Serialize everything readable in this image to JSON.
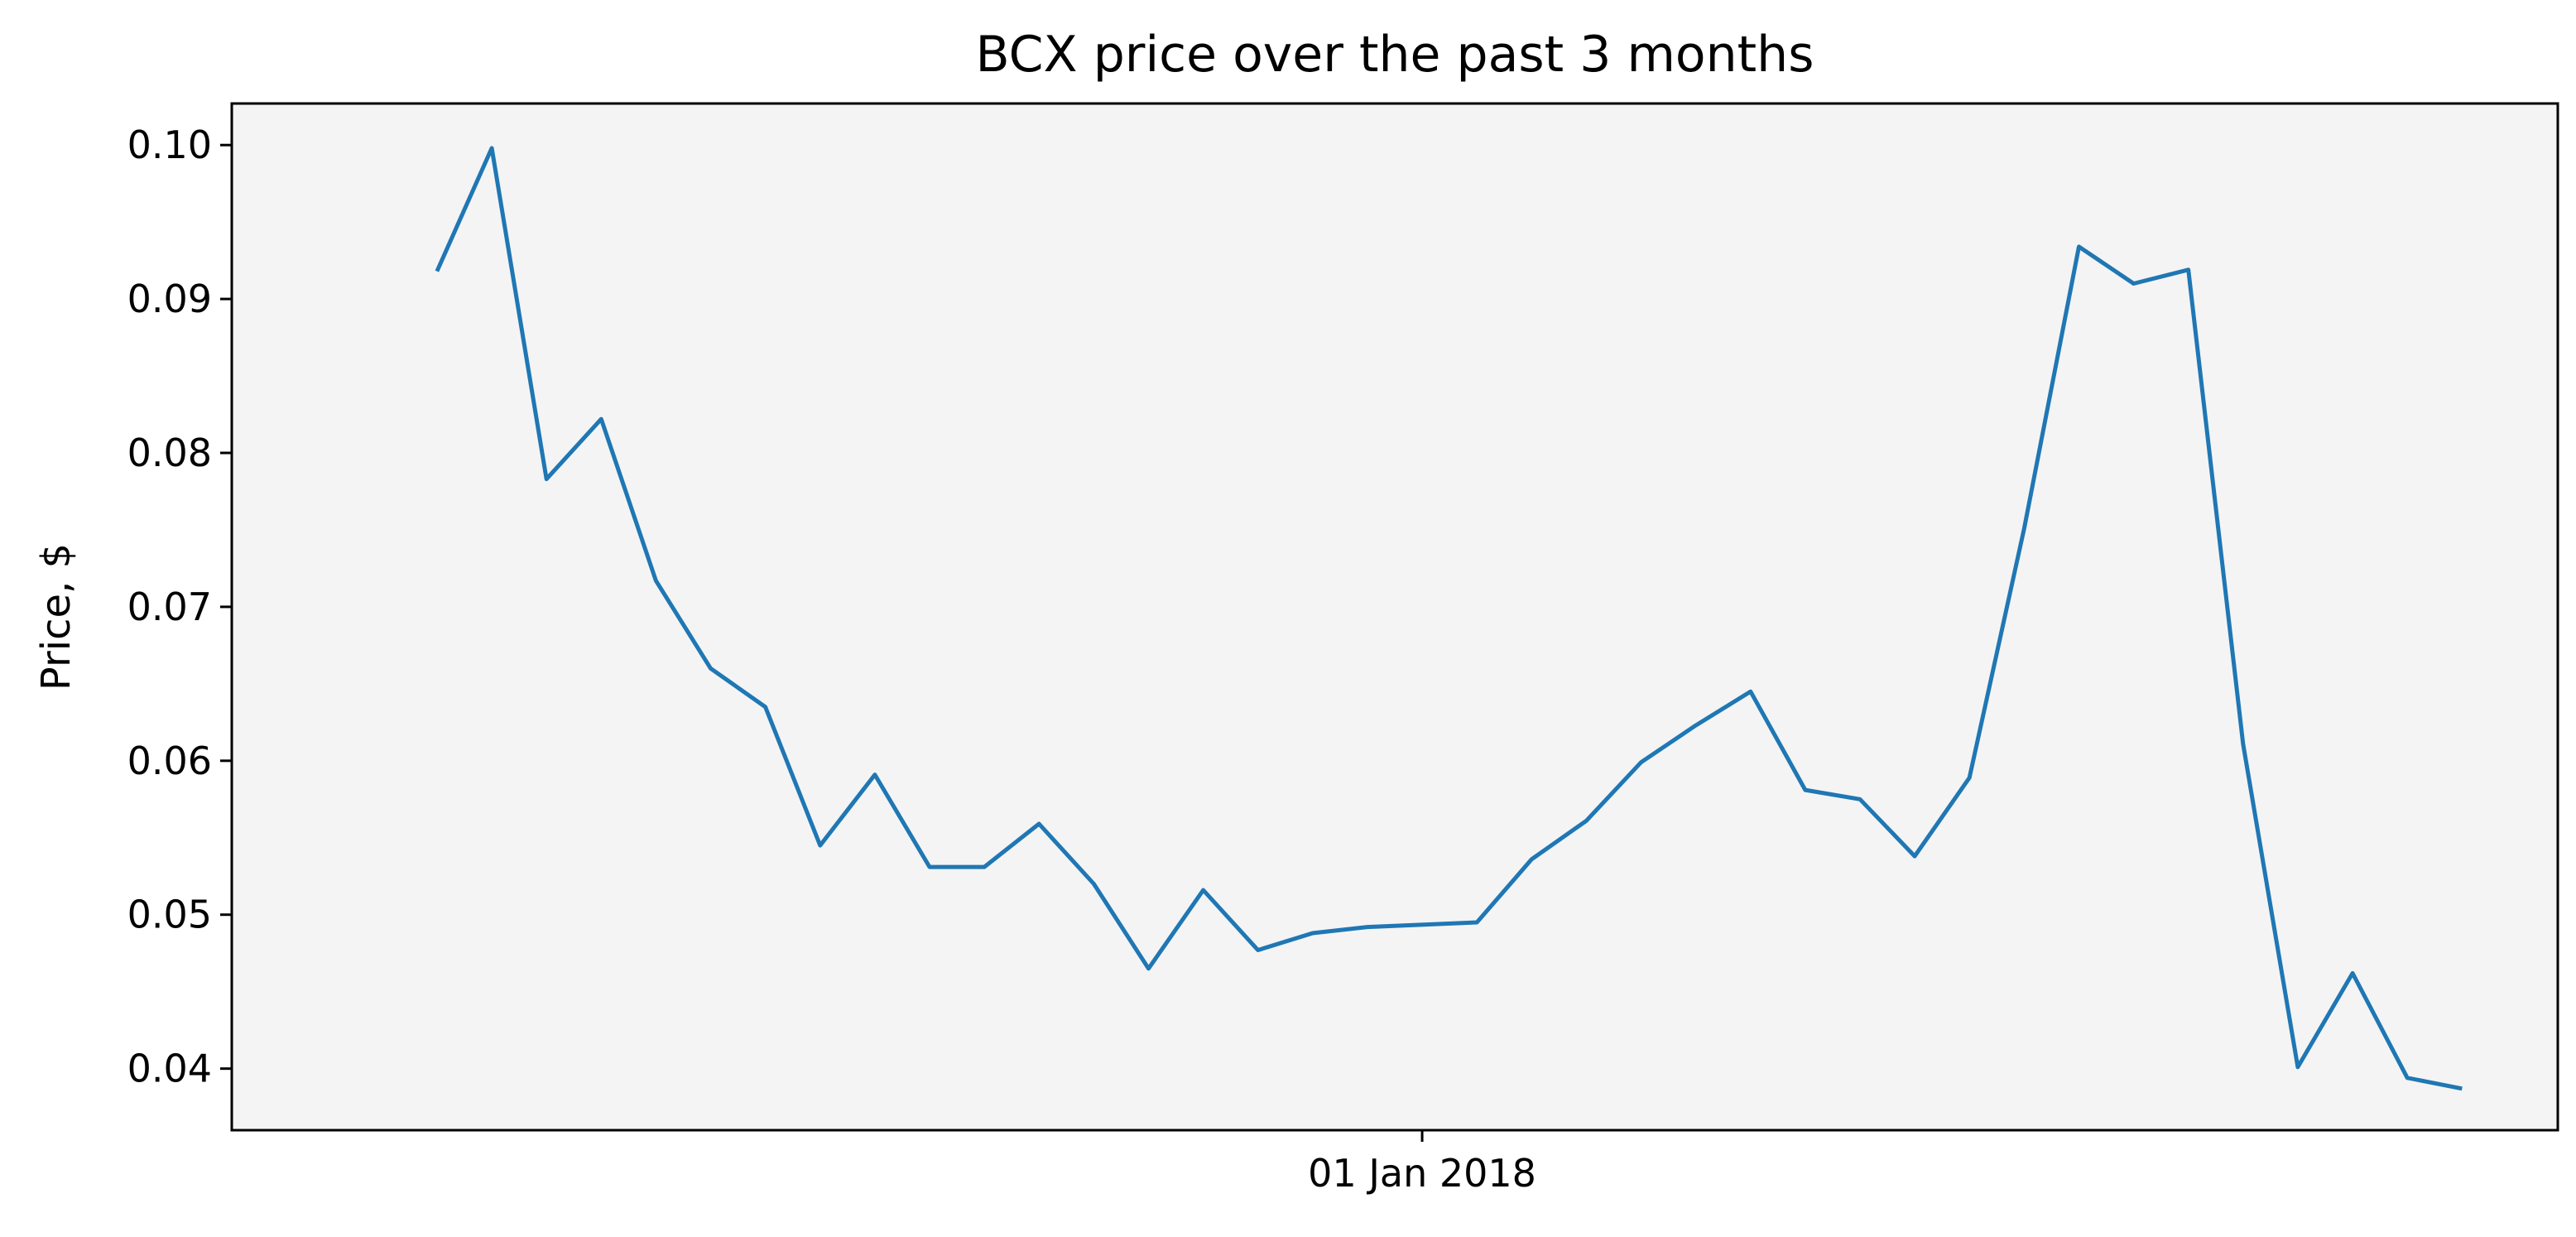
{
  "chart_data": {
    "type": "line",
    "title": "BCX price over the past 3 months",
    "xlabel": "",
    "ylabel": "Price, $",
    "x_tick_labels": [
      {
        "date": "2018-01-01",
        "label": "01 Jan 2018"
      }
    ],
    "y_ticks": [
      "0.04",
      "0.05",
      "0.06",
      "0.07",
      "0.08",
      "0.09",
      "0.10"
    ],
    "ylim": [
      0.036,
      0.1027
    ],
    "xlim": [
      "2017-10-06",
      "2018-03-25"
    ],
    "grid": false,
    "background_color": "#f4f4f4",
    "series": [
      {
        "color": "#1f77b4",
        "points": [
          {
            "x": "2017-10-21",
            "y": 0.0918
          },
          {
            "x": "2017-10-25",
            "y": 0.0998
          },
          {
            "x": "2017-10-29",
            "y": 0.0783
          },
          {
            "x": "2017-11-02",
            "y": 0.0822
          },
          {
            "x": "2017-11-06",
            "y": 0.0717
          },
          {
            "x": "2017-11-10",
            "y": 0.066
          },
          {
            "x": "2017-11-14",
            "y": 0.0635
          },
          {
            "x": "2017-11-18",
            "y": 0.0545
          },
          {
            "x": "2017-11-22",
            "y": 0.0591
          },
          {
            "x": "2017-11-26",
            "y": 0.0531
          },
          {
            "x": "2017-11-30",
            "y": 0.0531
          },
          {
            "x": "2017-12-04",
            "y": 0.0559
          },
          {
            "x": "2017-12-08",
            "y": 0.052
          },
          {
            "x": "2017-12-12",
            "y": 0.0465
          },
          {
            "x": "2017-12-16",
            "y": 0.0516
          },
          {
            "x": "2017-12-20",
            "y": 0.0477
          },
          {
            "x": "2017-12-24",
            "y": 0.0488
          },
          {
            "x": "2017-12-28",
            "y": 0.0492
          },
          {
            "x": "2018-01-05",
            "y": 0.0495
          },
          {
            "x": "2018-01-09",
            "y": 0.0536
          },
          {
            "x": "2018-01-13",
            "y": 0.0561
          },
          {
            "x": "2018-01-17",
            "y": 0.0599
          },
          {
            "x": "2018-01-21",
            "y": 0.0623
          },
          {
            "x": "2018-01-25",
            "y": 0.0645
          },
          {
            "x": "2018-01-29",
            "y": 0.0581
          },
          {
            "x": "2018-02-02",
            "y": 0.0575
          },
          {
            "x": "2018-02-06",
            "y": 0.0538
          },
          {
            "x": "2018-02-10",
            "y": 0.0589
          },
          {
            "x": "2018-02-14",
            "y": 0.0751
          },
          {
            "x": "2018-02-18",
            "y": 0.0934
          },
          {
            "x": "2018-02-22",
            "y": 0.091
          },
          {
            "x": "2018-02-26",
            "y": 0.0919
          },
          {
            "x": "2018-03-02",
            "y": 0.0611
          },
          {
            "x": "2018-03-06",
            "y": 0.0401
          },
          {
            "x": "2018-03-10",
            "y": 0.0462
          },
          {
            "x": "2018-03-14",
            "y": 0.0394
          },
          {
            "x": "2018-03-18",
            "y": 0.0387
          }
        ]
      }
    ]
  }
}
